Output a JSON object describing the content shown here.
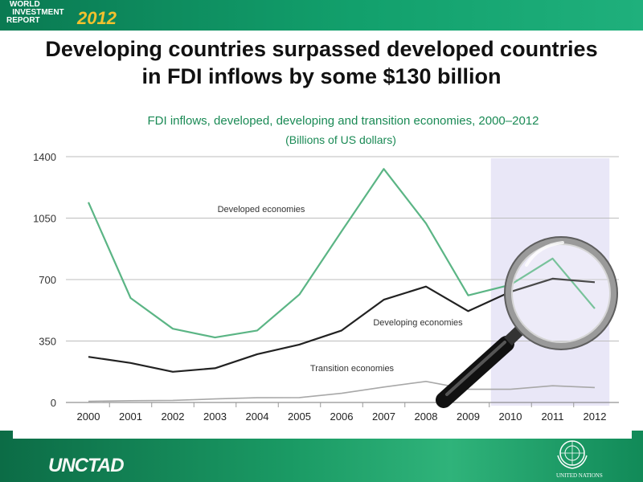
{
  "header": {
    "logo_line1": "WORLD",
    "logo_line2": "INVESTMENT",
    "logo_line3": "REPORT",
    "logo_year": "2012"
  },
  "slide_title_line1": "Developing countries surpassed developed countries",
  "slide_title_line2": "in FDI inflows by some $130 billion",
  "footer": {
    "org_name": "UNCTAD",
    "un_label": "UNITED NATIONS"
  },
  "colors": {
    "developed": "#5bb585",
    "developing": "#222222",
    "transition": "#a8a8a8",
    "highlight": "#e9e7f7",
    "title_green": "#1a8a55"
  },
  "chart_data": {
    "type": "line",
    "title": "FDI inflows,  developed, developing and transition economies, 2000–2012",
    "subtitle": "(Billions of US dollars)",
    "x": [
      "2000",
      "2001",
      "2002",
      "2003",
      "2004",
      "2005",
      "2006",
      "2007",
      "2008",
      "2009",
      "2010",
      "2011",
      "2012"
    ],
    "y_ticks": [
      0,
      350,
      700,
      1050,
      1400
    ],
    "ylim": [
      0,
      1400
    ],
    "grid": true,
    "highlight_range": [
      "2010",
      "2012"
    ],
    "series": [
      {
        "name": "Developed economies",
        "values": [
          1140,
          595,
          420,
          370,
          410,
          615,
          975,
          1330,
          1020,
          610,
          670,
          820,
          535
        ]
      },
      {
        "name": "Developing economies",
        "values": [
          260,
          225,
          175,
          195,
          275,
          330,
          410,
          585,
          660,
          520,
          630,
          705,
          685
        ]
      },
      {
        "name": "Transition economies",
        "values": [
          7,
          10,
          12,
          20,
          27,
          28,
          52,
          88,
          120,
          75,
          75,
          95,
          85
        ]
      }
    ]
  }
}
